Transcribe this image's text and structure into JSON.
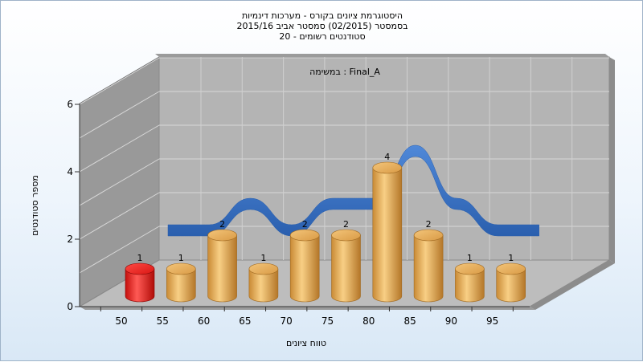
{
  "chart_data": {
    "type": "bar",
    "title_lines": [
      "היסטוגרמת ציונים בקורס - מערכות דינמיות",
      "בסמסטר  (02/2015)  סמסטר אביב 2015/16",
      "סטודנטים רשומים - 20"
    ],
    "annotation": "במשימה : Final_A",
    "xlabel": "טווח ציונים",
    "ylabel": "מספר סטודנטים",
    "categories": [
      "50",
      "55",
      "60",
      "65",
      "70",
      "75",
      "80",
      "85",
      "90",
      "95"
    ],
    "values": [
      1,
      1,
      2,
      1,
      2,
      2,
      4,
      2,
      1,
      1
    ],
    "highlight_index": 0,
    "highlight_color": "#e8201c",
    "bar_color": "#e6a24c",
    "curve_color": "#3a72c4",
    "yticks": [
      "0",
      "2",
      "4",
      "6"
    ],
    "ylim": [
      0,
      6
    ],
    "grid": true
  }
}
